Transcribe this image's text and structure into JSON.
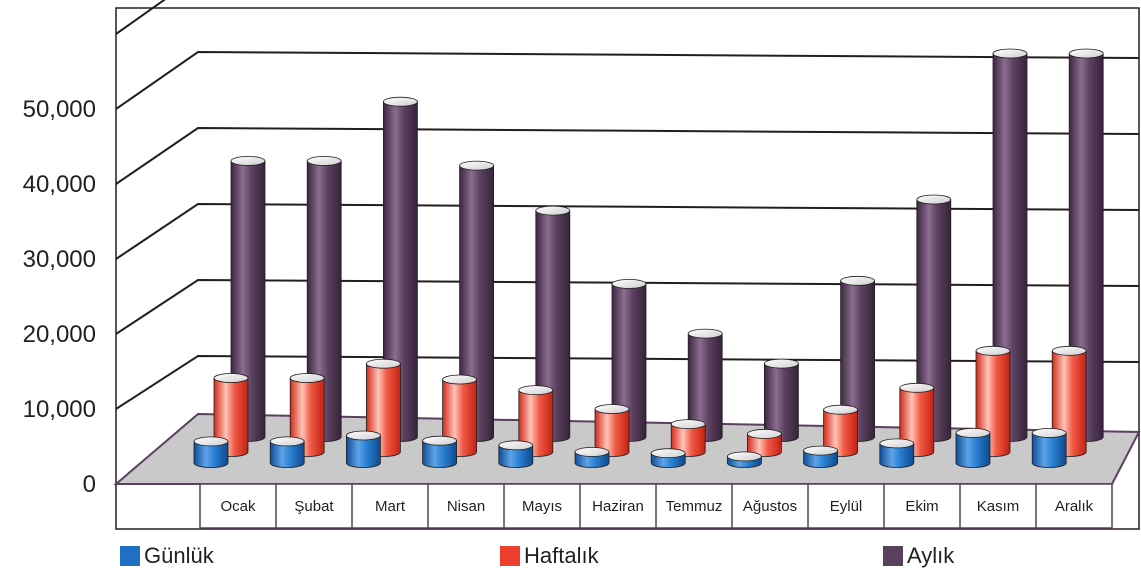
{
  "chart_data": {
    "type": "bar",
    "three_d": true,
    "categories": [
      "Ocak",
      "Şubat",
      "Mart",
      "Nisan",
      "Mayıs",
      "Haziran",
      "Temmuz",
      "Ağustos",
      "Eylül",
      "Ekim",
      "Kasım",
      "Aralık"
    ],
    "series": [
      {
        "name": "Günlük",
        "color": "#1f6fc5",
        "values": [
          3300,
          3300,
          4200,
          3400,
          2700,
          1700,
          1500,
          1000,
          1900,
          3000,
          4600,
          4600
        ]
      },
      {
        "name": "Haftalık",
        "color": "#ee3f2c",
        "values": [
          9800,
          9800,
          11700,
          9600,
          8200,
          5700,
          3700,
          2400,
          5600,
          8500,
          13400,
          13400
        ]
      },
      {
        "name": "Aylık",
        "color": "#5a3f5e",
        "values": [
          35000,
          35000,
          42500,
          34400,
          28700,
          19400,
          13100,
          9300,
          19800,
          30100,
          48600,
          48600
        ]
      }
    ],
    "yticks": [
      "0",
      "10,000",
      "20,000",
      "30,000",
      "40,000",
      "50,000"
    ],
    "ylim": [
      0,
      50000
    ],
    "grid": true,
    "legend": "bottom",
    "floor_color": "#c9c9ca",
    "title": "",
    "xlabel": "",
    "ylabel": ""
  }
}
